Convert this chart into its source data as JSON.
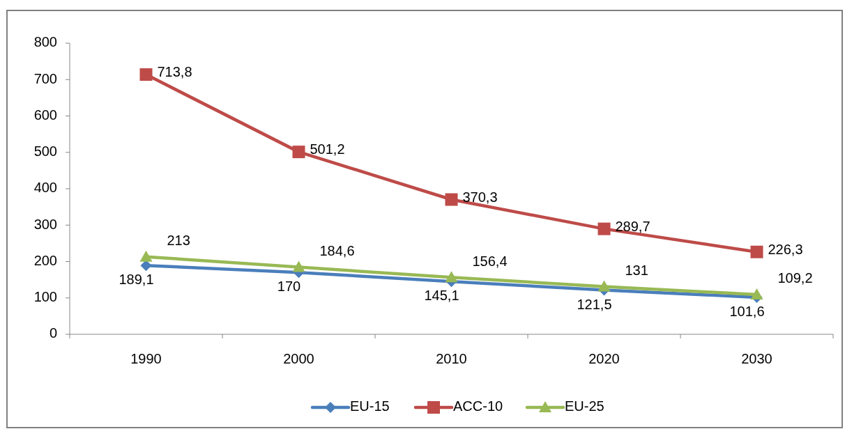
{
  "chart_data": {
    "type": "line",
    "categories": [
      "1990",
      "2000",
      "2010",
      "2020",
      "2030"
    ],
    "ylim": [
      0,
      800
    ],
    "yticks": [
      0,
      100,
      200,
      300,
      400,
      500,
      600,
      700,
      800
    ],
    "legend": "bottom",
    "grid": false,
    "series": [
      {
        "name": "EU-15",
        "color": "#4a7ebb",
        "marker": "diamond",
        "values": [
          189.1,
          170,
          145.1,
          121.5,
          101.6
        ],
        "value_labels": [
          "189,1",
          "170",
          "145,1",
          "121,5",
          "101,6"
        ]
      },
      {
        "name": "ACC-10",
        "color": "#be4b48",
        "marker": "square",
        "values": [
          713.8,
          501.2,
          370.3,
          289.7,
          226.3
        ],
        "value_labels": [
          "713,8",
          "501,2",
          "370,3",
          "289,7",
          "226,3"
        ]
      },
      {
        "name": "EU-25",
        "color": "#98b954",
        "marker": "triangle",
        "values": [
          213,
          184.6,
          156.4,
          131,
          109.2
        ],
        "value_labels": [
          "213",
          "184,6",
          "156,4",
          "131",
          "109,2"
        ]
      }
    ]
  }
}
